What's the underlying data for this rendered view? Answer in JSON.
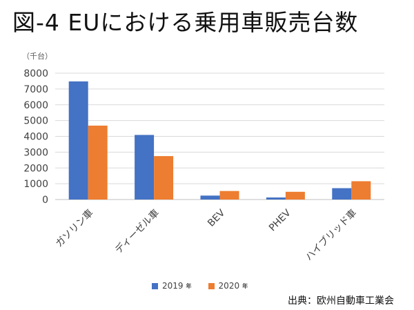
{
  "title": "図-4 EUにおける乗用車販売台数",
  "source": "出典：欧州自動車工業会",
  "colors": {
    "2019": "#4472C4",
    "2020": "#ED7D31",
    "grid": "#d9d9d9",
    "axis": "#bfbfbf"
  },
  "chart_data": {
    "type": "bar",
    "unit_label": "（千台）",
    "categories": [
      "ガソリン車",
      "ディーゼル車",
      "BEV",
      "PHEV",
      "ハイブリッド車"
    ],
    "series": [
      {
        "name": "2019",
        "suffix": "年",
        "values": [
          7480,
          4090,
          250,
          130,
          720
        ]
      },
      {
        "name": "2020",
        "suffix": "年",
        "values": [
          4680,
          2750,
          540,
          490,
          1160
        ]
      }
    ],
    "ylim": [
      0,
      8000
    ],
    "yticks": [
      0,
      1000,
      2000,
      3000,
      4000,
      5000,
      6000,
      7000,
      8000
    ],
    "grid": true,
    "legend": "bottom"
  }
}
